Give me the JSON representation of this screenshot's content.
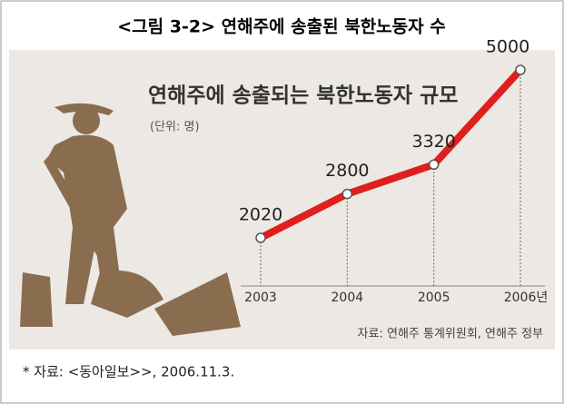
{
  "figure_title": "<그림 3-2> 연해주에 송출된 북한노동자 수",
  "chart_data": {
    "type": "line",
    "title": "연해주에 송출되는 북한노동자 규모",
    "subtitle": "(단위: 명)",
    "categories": [
      "2003",
      "2004",
      "2005",
      "2006년"
    ],
    "values": [
      2020,
      2800,
      3320,
      5000
    ],
    "color": "#e01e1e",
    "source": "자료: 연해주 통계위원회, 연해주 정부"
  },
  "footnote": "* 자료: <동아일보>>, 2006.11.3."
}
